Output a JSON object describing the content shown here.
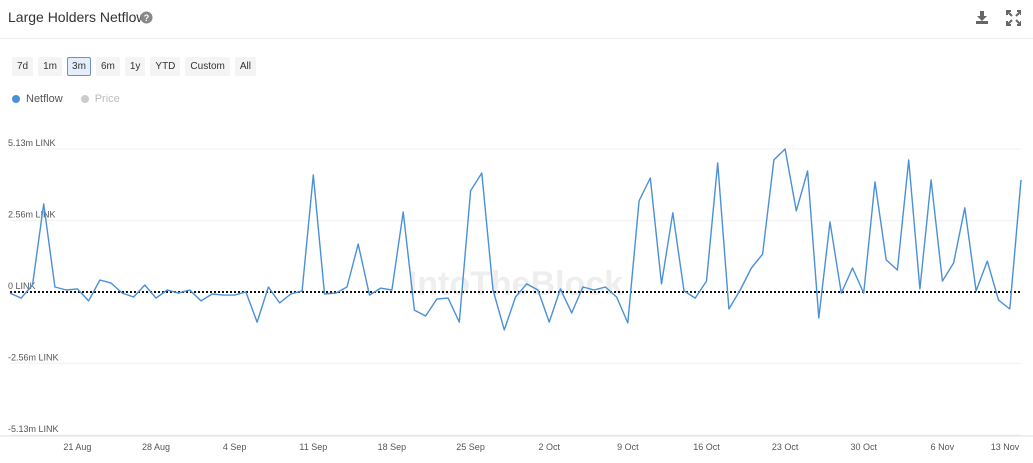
{
  "header": {
    "title": "Large Holders Netflow"
  },
  "range_buttons": [
    "7d",
    "1m",
    "3m",
    "6m",
    "1y",
    "YTD",
    "Custom",
    "All"
  ],
  "selected_range": "3m",
  "watermark": "IntoTheBlock",
  "chart_data": {
    "type": "line",
    "categories": [
      null,
      null,
      null,
      null,
      null,
      null,
      "21 Aug",
      null,
      null,
      null,
      null,
      null,
      null,
      "28 Aug",
      null,
      null,
      null,
      null,
      null,
      null,
      "4 Sep",
      null,
      null,
      null,
      null,
      null,
      null,
      "11 Sep",
      null,
      null,
      null,
      null,
      null,
      null,
      "18 Sep",
      null,
      null,
      null,
      null,
      null,
      null,
      "25 Sep",
      null,
      null,
      null,
      null,
      null,
      null,
      "2 Oct",
      null,
      null,
      null,
      null,
      null,
      null,
      "9 Oct",
      null,
      null,
      null,
      null,
      null,
      null,
      "16 Oct",
      null,
      null,
      null,
      null,
      null,
      null,
      "23 Oct",
      null,
      null,
      null,
      null,
      null,
      null,
      "30 Oct",
      null,
      null,
      null,
      null,
      null,
      null,
      "6 Nov",
      null,
      null,
      null,
      null,
      null,
      null,
      "13 Nov"
    ],
    "series": [
      {
        "name": "Netflow",
        "color": "#4a90d9",
        "values": [
          -40000,
          -220000,
          250000,
          3160000,
          180000,
          70000,
          110000,
          -320000,
          430000,
          320000,
          -40000,
          -180000,
          250000,
          -220000,
          70000,
          -40000,
          70000,
          -320000,
          -70000,
          -110000,
          -110000,
          0,
          -1080000,
          180000,
          -390000,
          -70000,
          40000,
          4200000,
          -70000,
          -40000,
          180000,
          1720000,
          -110000,
          140000,
          70000,
          2870000,
          -650000,
          -860000,
          -250000,
          -220000,
          -1080000,
          3630000,
          4270000,
          70000,
          -1360000,
          -180000,
          290000,
          70000,
          -1080000,
          110000,
          -750000,
          180000,
          70000,
          180000,
          -180000,
          -1110000,
          3270000,
          4090000,
          290000,
          2840000,
          40000,
          -220000,
          390000,
          4630000,
          -610000,
          70000,
          860000,
          1360000,
          4740000,
          5130000,
          2910000,
          4340000,
          -930000,
          2510000,
          -40000,
          860000,
          -40000,
          3950000,
          1150000,
          790000,
          4740000,
          110000,
          4020000,
          390000,
          1040000,
          3020000,
          40000,
          1110000,
          -290000,
          -610000,
          4020000
        ]
      }
    ],
    "hidden_series": [
      {
        "name": "Price",
        "color": "#cccccc"
      }
    ],
    "ylim": [
      -5130000,
      5130000
    ],
    "yticks": [
      {
        "value": -5130000,
        "label": "-5.13m LINK"
      },
      {
        "value": -2560000,
        "label": "-2.56m LINK"
      },
      {
        "value": 0,
        "label": "0 LINK"
      },
      {
        "value": 2560000,
        "label": "2.56m LINK"
      },
      {
        "value": 5130000,
        "label": "5.13m LINK"
      }
    ],
    "grid": true
  }
}
